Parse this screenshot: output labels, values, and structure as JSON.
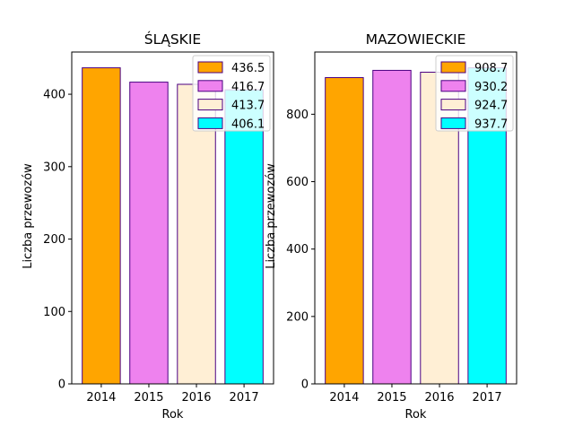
{
  "chart_data": [
    {
      "type": "bar",
      "title": "ŚLĄSKIE",
      "xlabel": "Rok",
      "ylabel": "Liczba przewozów",
      "categories": [
        "2014",
        "2015",
        "2016",
        "2017"
      ],
      "values": [
        436.5,
        416.7,
        413.7,
        406.1
      ],
      "legend_labels": [
        "436.5",
        "416.7",
        "413.7",
        "406.1"
      ],
      "ylim": [
        0,
        458.3
      ],
      "yticks": [
        0,
        100,
        200,
        300,
        400
      ],
      "ytick_labels": [
        "0",
        "100",
        "200",
        "300",
        "400"
      ],
      "legend_position": "upper right",
      "grid": false
    },
    {
      "type": "bar",
      "title": "MAZOWIECKIE",
      "xlabel": "Rok",
      "ylabel": "Liczba przewozów",
      "categories": [
        "2014",
        "2015",
        "2016",
        "2017"
      ],
      "values": [
        908.7,
        930.2,
        924.7,
        937.7
      ],
      "legend_labels": [
        "908.7",
        "930.2",
        "924.7",
        "937.7"
      ],
      "ylim": [
        0,
        984.6
      ],
      "yticks": [
        0,
        200,
        400,
        600,
        800
      ],
      "ytick_labels": [
        "0",
        "200",
        "400",
        "600",
        "800"
      ],
      "legend_position": "upper right",
      "grid": false
    }
  ],
  "colors": {
    "bars": [
      "#ffa500",
      "#ee82ee",
      "#ffefd5",
      "#00ffff"
    ],
    "edge": "#4b0082",
    "axis": "#000000",
    "legend_border": "#cccccc"
  }
}
